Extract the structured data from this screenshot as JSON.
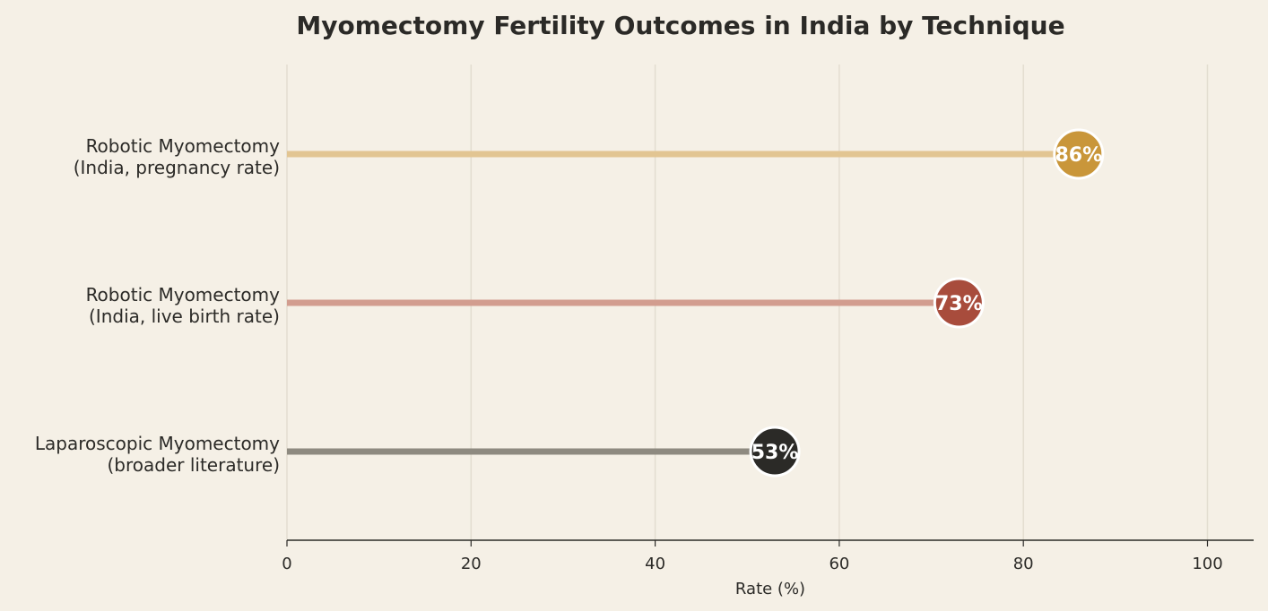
{
  "chart_data": {
    "type": "lollipop",
    "title": "Myomectomy Fertility Outcomes in India by Technique",
    "xlabel": "Rate (%)",
    "ylabel": "",
    "xlim": [
      0,
      105
    ],
    "xticks": [
      0,
      20,
      40,
      60,
      80,
      100
    ],
    "grid": "vertical",
    "legend": "none",
    "categories": [
      {
        "line1": "Robotic Myomectomy",
        "line2": "(India, pregnancy rate)",
        "value": 86,
        "label": "86%",
        "dot_color": "#c9963a",
        "stem_color": "#e2c592"
      },
      {
        "line1": "Robotic Myomectomy",
        "line2": "(India, live birth rate)",
        "value": 73,
        "label": "73%",
        "dot_color": "#a84c3c",
        "stem_color": "#d29d8f"
      },
      {
        "line1": "Laparoscopic Myomectomy",
        "line2": "(broader literature)",
        "value": 53,
        "label": "53%",
        "dot_color": "#2b2a27",
        "stem_color": "#8e8a80"
      }
    ]
  }
}
